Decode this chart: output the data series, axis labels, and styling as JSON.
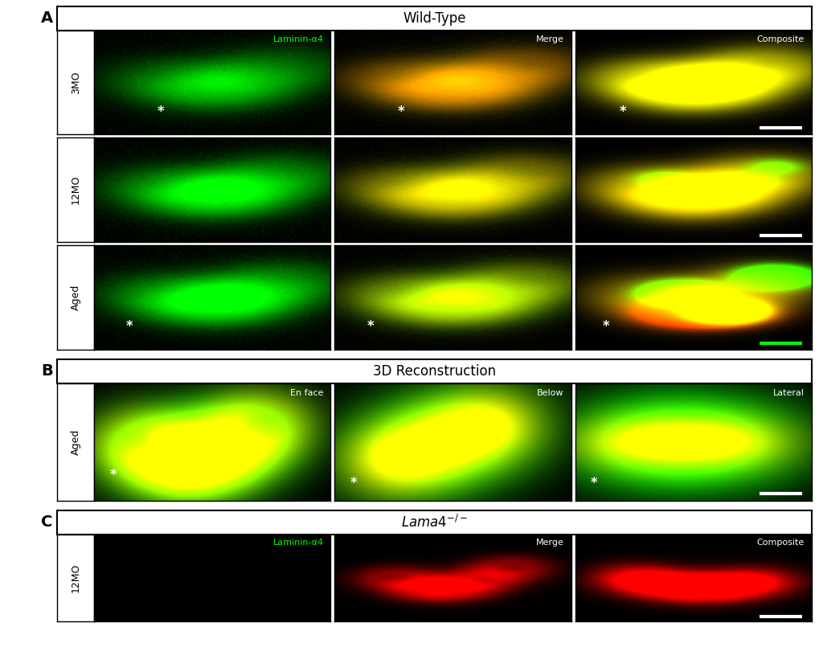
{
  "fig_width": 10.2,
  "fig_height": 8.36,
  "dpi": 100,
  "bg_color": "#ffffff",
  "panel_bg": "#000000",
  "section_A_label": "Wild-Type",
  "section_B_label": "3D Reconstruction",
  "section_C_label": "Lama4⁻/⁻",
  "row_labels_A": [
    "3MO",
    "12MO",
    "Aged"
  ],
  "row_label_B": "Aged",
  "row_label_C": "12MO",
  "col_labels_A": [
    "Laminin-α4",
    "Merge",
    "Composite"
  ],
  "col_labels_B": [
    "En face",
    "Below",
    "Lateral"
  ],
  "col_labels_C": [
    "Laminin-α4",
    "Merge",
    "Composite"
  ],
  "panel_label_A": "A",
  "panel_label_B": "B",
  "panel_label_C": "C",
  "label_color_green": "#00ff00",
  "label_color_white": "#ffffff",
  "section_header_bg": "#ffffff",
  "section_header_fg": "#000000",
  "outer_border_color": "#000000",
  "row_label_bg": "#ffffff",
  "row_label_fg": "#000000",
  "scale_bar_color_white": "#ffffff",
  "scale_bar_color_green": "#00ff00"
}
